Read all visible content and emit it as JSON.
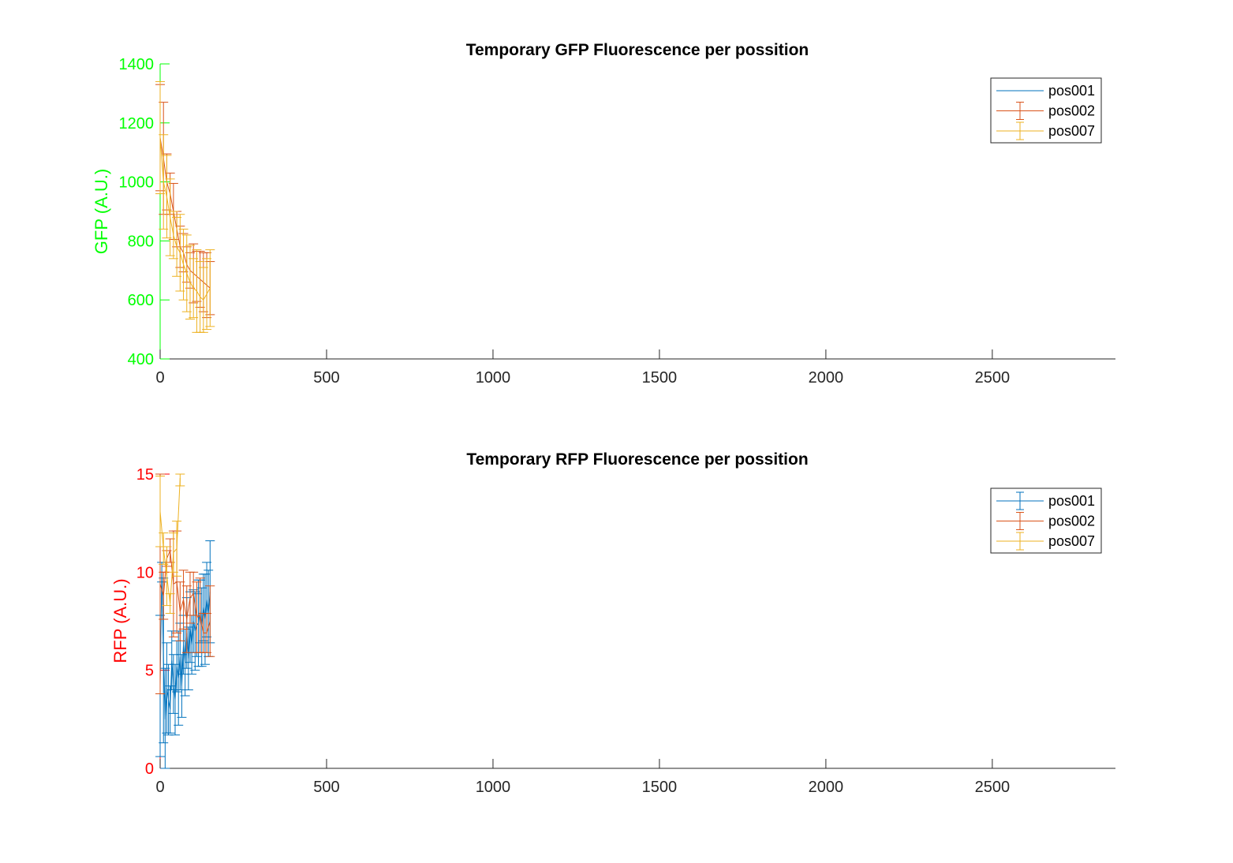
{
  "chart_data": [
    {
      "type": "line",
      "title": "Temporary GFP Fluorescence per possition",
      "xlabel": "",
      "ylabel": "GFP (A.U.)",
      "ylabel_color": "#00ff00",
      "xlim": [
        0,
        2870
      ],
      "ylim": [
        400,
        1400
      ],
      "xticks": [
        0,
        500,
        1000,
        1500,
        2000,
        2500
      ],
      "yticks": [
        400,
        600,
        800,
        1000,
        1200,
        1400
      ],
      "legend_position": "top-right",
      "error_bars": true,
      "series": [
        {
          "name": "pos001",
          "color": "#0072bd",
          "x": [],
          "y": [],
          "err": []
        },
        {
          "name": "pos002",
          "color": "#d95319",
          "x": [
            0,
            10,
            20,
            30,
            40,
            50,
            60,
            70,
            80,
            90,
            100,
            110,
            120,
            130,
            140,
            150
          ],
          "y": [
            1150,
            1080,
            1000,
            960,
            900,
            840,
            780,
            760,
            720,
            700,
            690,
            680,
            670,
            660,
            650,
            640
          ],
          "err": [
            180,
            190,
            95,
            70,
            95,
            60,
            70,
            65,
            60,
            60,
            100,
            85,
            95,
            100,
            110,
            90
          ]
        },
        {
          "name": "pos007",
          "color": "#edb120",
          "x": [
            0,
            10,
            20,
            30,
            40,
            50,
            60,
            70,
            80,
            90,
            100,
            110,
            120,
            130,
            140,
            150
          ],
          "y": [
            1150,
            1000,
            950,
            880,
            820,
            780,
            760,
            720,
            690,
            660,
            640,
            630,
            610,
            600,
            620,
            640
          ],
          "err": [
            190,
            160,
            140,
            130,
            80,
            100,
            130,
            120,
            130,
            125,
            100,
            140,
            120,
            110,
            120,
            130
          ]
        }
      ]
    },
    {
      "type": "line",
      "title": "Temporary RFP Fluorescence per possition",
      "xlabel": "",
      "ylabel": "RFP (A.U.)",
      "ylabel_color": "#ff0000",
      "xlim": [
        0,
        2870
      ],
      "ylim": [
        0,
        15
      ],
      "xticks": [
        0,
        500,
        1000,
        1500,
        2000,
        2500
      ],
      "yticks": [
        0,
        5,
        10,
        15
      ],
      "legend_position": "top-right",
      "error_bars": true,
      "series": [
        {
          "name": "pos001",
          "color": "#0072bd",
          "x": [
            0,
            5,
            10,
            15,
            20,
            25,
            30,
            35,
            40,
            45,
            50,
            55,
            60,
            65,
            70,
            75,
            80,
            85,
            90,
            95,
            100,
            105,
            110,
            115,
            120,
            125,
            130,
            135,
            140,
            145,
            150
          ],
          "y": [
            4.2,
            10.0,
            5.5,
            2.5,
            4.1,
            3.5,
            3.0,
            5.5,
            4.3,
            3.5,
            5.2,
            4.6,
            5.7,
            4.2,
            6.3,
            5.4,
            6.9,
            5.6,
            7.2,
            6.3,
            7.5,
            7.0,
            7.3,
            7.4,
            8.0,
            7.2,
            8.2,
            7.6,
            8.6,
            7.9,
            9.0
          ],
          "err": [
            3.6,
            0.5,
            4.2,
            2.6,
            2.3,
            1.8,
            1.2,
            1.5,
            1.5,
            1.8,
            1.3,
            2.4,
            1.7,
            1.6,
            1.5,
            1.7,
            1.8,
            1.6,
            1.8,
            1.5,
            1.6,
            2.0,
            1.6,
            2.2,
            1.6,
            2.0,
            1.7,
            2.3,
            1.9,
            2.2,
            2.6
          ]
        },
        {
          "name": "pos002",
          "color": "#d95319",
          "x": [
            0,
            10,
            20,
            30,
            40,
            50,
            60,
            70,
            80,
            90,
            100,
            110,
            120,
            130,
            140,
            150
          ],
          "y": [
            9.4,
            8.8,
            10.7,
            11.1,
            9.4,
            9.5,
            8.0,
            8.6,
            7.6,
            8.7,
            8.9,
            7.7,
            7.8,
            6.9,
            6.9,
            7.5
          ],
          "err": [
            5.6,
            1.2,
            0.4,
            0.6,
            2.7,
            2.6,
            1.5,
            1.5,
            1.7,
            1.3,
            1.1,
            1.8,
            1.9,
            1.0,
            1.0,
            1.8
          ]
        },
        {
          "name": "pos007",
          "color": "#edb120",
          "x": [
            0,
            10,
            20,
            30,
            40,
            50,
            60
          ],
          "y": [
            13.1,
            11.2,
            9.8,
            8.4,
            11.0,
            11.2,
            14.8
          ],
          "err": [
            1.8,
            0.8,
            1.5,
            0.5,
            1.0,
            1.4,
            0.4
          ]
        }
      ]
    }
  ]
}
